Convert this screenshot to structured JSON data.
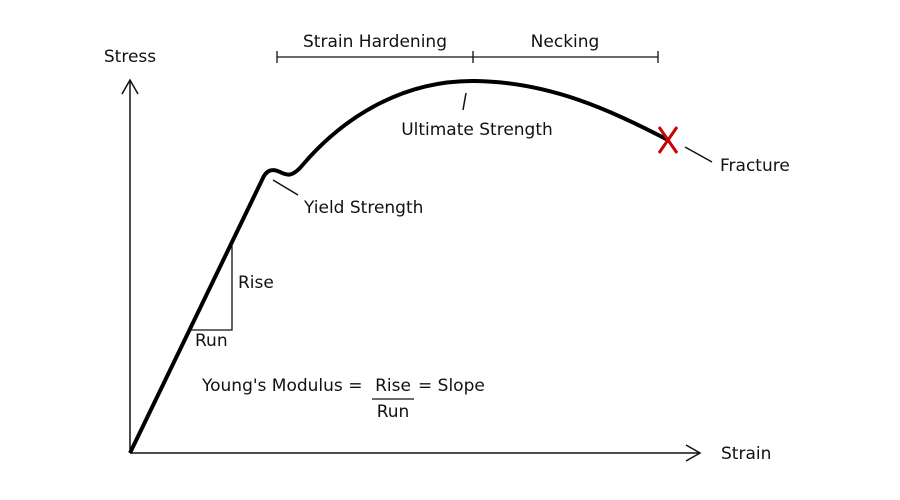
{
  "axes": {
    "y_label": "Stress",
    "x_label": "Strain"
  },
  "regions": [
    {
      "label": "Strain Hardening"
    },
    {
      "label": "Necking"
    }
  ],
  "annotations": {
    "ultimate": "Ultimate Strength",
    "fracture": "Fracture",
    "yield": "Yield Strength",
    "rise": "Rise",
    "run": "Run"
  },
  "formula": {
    "lhs": "Young's Modulus =",
    "numerator": "Rise",
    "rhs": "= Slope",
    "denominator": "Run"
  }
}
